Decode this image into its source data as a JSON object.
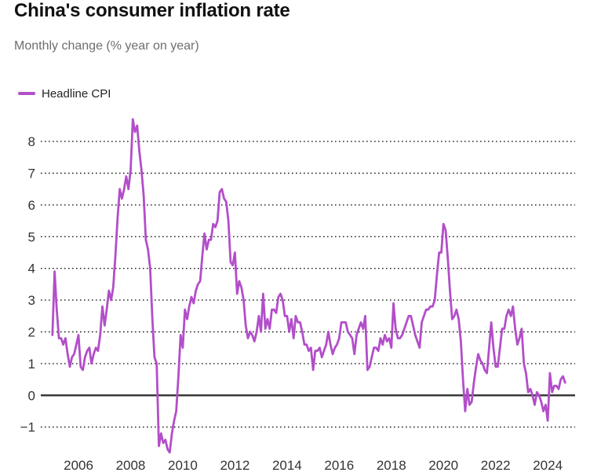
{
  "header": {
    "title": "China's consumer inflation rate",
    "subtitle": "Monthly change (% year on year)"
  },
  "colors": {
    "line": "#b24ec9",
    "grid": "#1a1a1a",
    "zero_line": "#303030",
    "title_text": "#111111",
    "subtitle_text": "#6e6e6e",
    "axis_text": "#333333",
    "background": "#ffffff"
  },
  "chart_data": {
    "type": "line",
    "title": "China's consumer inflation rate",
    "subtitle": "Monthly change (% year on year)",
    "xlabel": "",
    "ylabel": "",
    "y_ticks": [
      -1,
      0,
      1,
      2,
      3,
      4,
      5,
      6,
      7,
      8
    ],
    "ylim": [
      -2,
      9
    ],
    "x_tick_labels": [
      "2006",
      "2008",
      "2010",
      "2012",
      "2014",
      "2016",
      "2018",
      "2020",
      "2022",
      "2024"
    ],
    "grid": "horizontal dotted gridlines, solid line at zero",
    "legend_position": "top-left",
    "series": [
      {
        "name": "Headline CPI",
        "color": "#b24ec9",
        "frequency": "monthly",
        "start_year": 2005,
        "start_month": 1,
        "end_label": "2024-09",
        "values": [
          1.9,
          3.9,
          2.7,
          1.8,
          1.8,
          1.6,
          1.8,
          1.3,
          0.9,
          1.2,
          1.3,
          1.6,
          1.9,
          0.9,
          0.8,
          1.2,
          1.4,
          1.5,
          1.0,
          1.3,
          1.5,
          1.4,
          1.9,
          2.8,
          2.2,
          2.7,
          3.3,
          3.0,
          3.4,
          4.4,
          5.6,
          6.5,
          6.2,
          6.5,
          6.9,
          6.5,
          7.1,
          8.7,
          8.3,
          8.5,
          7.7,
          7.1,
          6.3,
          4.9,
          4.6,
          4.0,
          2.4,
          1.2,
          1.0,
          -1.6,
          -1.2,
          -1.5,
          -1.4,
          -1.7,
          -1.8,
          -1.2,
          -0.8,
          -0.5,
          0.6,
          1.9,
          1.5,
          2.7,
          2.4,
          2.8,
          3.1,
          2.9,
          3.3,
          3.5,
          3.6,
          4.4,
          5.1,
          4.6,
          4.9,
          4.9,
          5.4,
          5.3,
          5.5,
          6.4,
          6.5,
          6.2,
          6.1,
          5.5,
          4.2,
          4.1,
          4.5,
          3.2,
          3.6,
          3.4,
          3.0,
          2.2,
          1.8,
          2.0,
          1.9,
          1.7,
          2.0,
          2.5,
          2.0,
          3.2,
          2.1,
          2.4,
          2.1,
          2.7,
          2.7,
          2.6,
          3.1,
          3.2,
          3.0,
          2.5,
          2.5,
          2.0,
          2.4,
          1.8,
          2.5,
          2.3,
          2.3,
          2.0,
          1.6,
          1.6,
          1.4,
          1.5,
          0.8,
          1.4,
          1.4,
          1.5,
          1.2,
          1.4,
          1.6,
          2.0,
          1.6,
          1.3,
          1.5,
          1.6,
          1.8,
          2.3,
          2.3,
          2.3,
          2.0,
          1.9,
          1.8,
          1.3,
          1.9,
          2.1,
          2.3,
          2.1,
          2.5,
          0.8,
          0.9,
          1.2,
          1.5,
          1.5,
          1.4,
          1.8,
          1.6,
          1.9,
          1.7,
          1.8,
          1.5,
          2.9,
          2.1,
          1.8,
          1.8,
          1.9,
          2.1,
          2.3,
          2.5,
          2.5,
          2.2,
          1.9,
          1.7,
          1.5,
          2.3,
          2.5,
          2.7,
          2.7,
          2.8,
          2.8,
          3.0,
          3.8,
          4.5,
          4.5,
          5.4,
          5.2,
          4.3,
          3.3,
          2.4,
          2.5,
          2.7,
          2.4,
          1.7,
          0.5,
          -0.5,
          0.2,
          -0.3,
          -0.2,
          0.4,
          0.9,
          1.3,
          1.1,
          1.0,
          0.8,
          0.7,
          1.5,
          2.3,
          1.5,
          0.9,
          0.9,
          1.5,
          2.1,
          2.1,
          2.5,
          2.7,
          2.5,
          2.8,
          2.1,
          1.6,
          1.8,
          2.1,
          1.0,
          0.7,
          0.1,
          0.2,
          0.0,
          -0.3,
          0.1,
          0.0,
          -0.2,
          -0.5,
          -0.3,
          -0.8,
          0.7,
          0.1,
          0.3,
          0.3,
          0.2,
          0.5,
          0.6,
          0.4
        ]
      }
    ]
  }
}
